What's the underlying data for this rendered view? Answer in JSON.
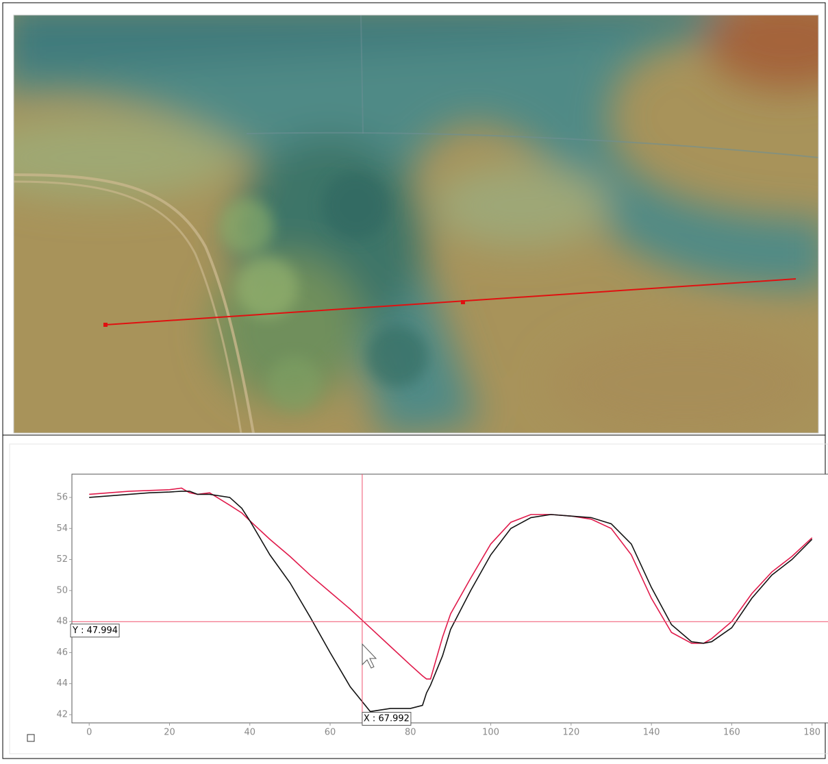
{
  "chart_data": {
    "type": "line",
    "x": [
      0,
      5,
      10,
      15,
      20,
      23,
      25,
      27,
      30,
      35,
      38,
      40,
      45,
      50,
      55,
      60,
      65,
      70,
      75,
      80,
      83,
      84,
      85,
      88,
      90,
      95,
      100,
      105,
      110,
      115,
      120,
      125,
      130,
      135,
      140,
      145,
      150,
      153,
      155,
      160,
      165,
      170,
      175,
      180
    ],
    "series": [
      {
        "color": "#e0194a",
        "values": [
          56.2,
          56.3,
          56.4,
          56.45,
          56.5,
          56.6,
          56.3,
          56.2,
          56.3,
          55.5,
          55.0,
          54.5,
          53.3,
          52.2,
          51.0,
          49.9,
          48.8,
          47.6,
          46.4,
          45.2,
          44.5,
          44.3,
          44.3,
          47.0,
          48.5,
          50.8,
          53.0,
          54.4,
          54.9,
          54.9,
          54.8,
          54.6,
          54.0,
          52.3,
          49.5,
          47.3,
          46.6,
          46.6,
          46.9,
          48.0,
          49.8,
          51.2,
          52.2,
          53.4
        ]
      },
      {
        "color": "#111111",
        "values": [
          56.0,
          56.1,
          56.2,
          56.3,
          56.35,
          56.4,
          56.4,
          56.2,
          56.2,
          56.0,
          55.3,
          54.5,
          52.3,
          50.5,
          48.3,
          46.0,
          43.8,
          42.2,
          42.4,
          42.4,
          42.6,
          43.4,
          43.9,
          45.8,
          47.5,
          50.0,
          52.3,
          54.0,
          54.7,
          54.9,
          54.8,
          54.7,
          54.3,
          53.0,
          50.2,
          47.8,
          46.7,
          46.6,
          46.7,
          47.6,
          49.5,
          51.0,
          52.0,
          53.3
        ]
      }
    ],
    "xlim": [
      -4.3,
      185
    ],
    "ylim": [
      41.47,
      57.5
    ],
    "xticks": [
      0,
      20,
      40,
      60,
      80,
      100,
      120,
      140,
      160,
      180
    ],
    "yticks": [
      42,
      44,
      46,
      48,
      50,
      52,
      54,
      56
    ],
    "grid": false,
    "crosshair": {
      "x": 67.992,
      "y": 47.994,
      "color": "#f0506e",
      "x_label": "X : 67.992",
      "y_label": "Y : 47.994"
    }
  }
}
